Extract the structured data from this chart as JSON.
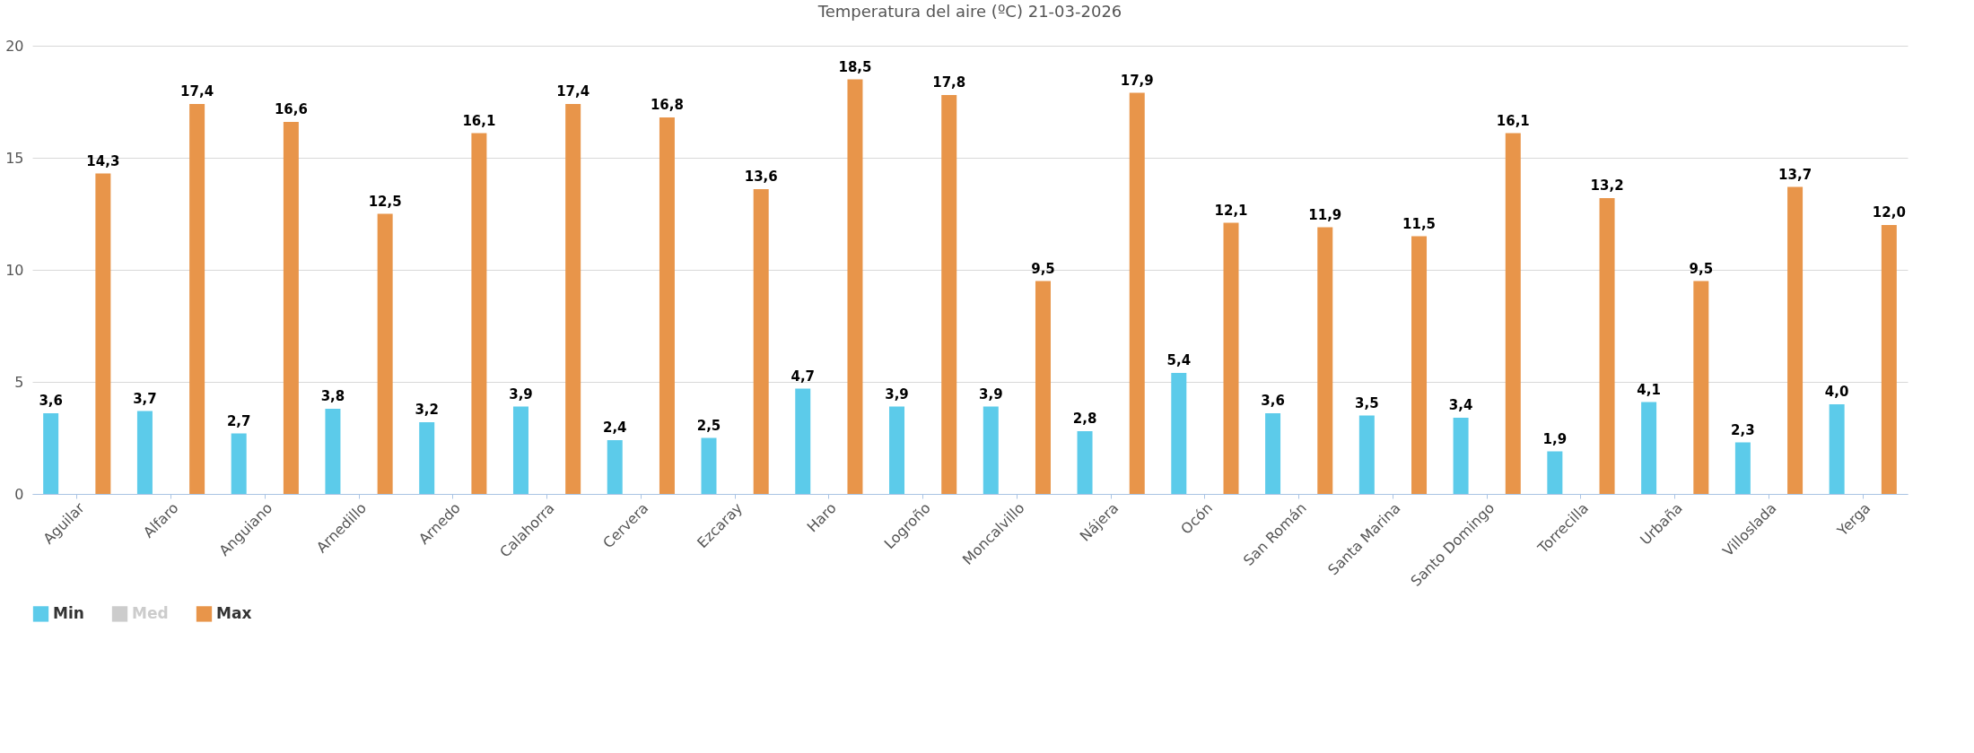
{
  "chart_data": {
    "type": "bar",
    "title": "Temperatura del aire (ºC) 21-03-2026",
    "categories": [
      "Aguilar",
      "Alfaro",
      "Anguiano",
      "Arnedillo",
      "Arnedo",
      "Calahorra",
      "Cervera",
      "Ezcaray",
      "Haro",
      "Logroño",
      "Moncalvillo",
      "Nájera",
      "Ocón",
      "San Román",
      "Santa Marina",
      "Santo Domingo",
      "Torrecilla",
      "Urbaña",
      "Villoslada",
      "Yerga"
    ],
    "series": [
      {
        "name": "Min",
        "color": "#5ccbea",
        "values": [
          3.6,
          3.7,
          2.7,
          3.8,
          3.2,
          3.9,
          2.4,
          2.5,
          4.7,
          3.9,
          3.9,
          2.8,
          5.4,
          3.6,
          3.5,
          3.4,
          1.9,
          4.1,
          2.3,
          4.0
        ],
        "value_labels": [
          "3,6",
          "3,7",
          "2,7",
          "3,8",
          "3,2",
          "3,9",
          "2,4",
          "2,5",
          "4,7",
          "3,9",
          "3,9",
          "2,8",
          "5,4",
          "3,6",
          "3,5",
          "3,4",
          "1,9",
          "4,1",
          "2,3",
          "4,0"
        ]
      },
      {
        "name": "Med",
        "color": "#cccccc",
        "values": [
          null,
          null,
          null,
          null,
          null,
          null,
          null,
          null,
          null,
          null,
          null,
          null,
          null,
          null,
          null,
          null,
          null,
          null,
          null,
          null
        ]
      },
      {
        "name": "Max",
        "color": "#e8954a",
        "values": [
          14.3,
          17.4,
          16.6,
          12.5,
          16.1,
          17.4,
          16.8,
          13.6,
          18.5,
          17.8,
          9.5,
          17.9,
          12.1,
          11.9,
          11.5,
          16.1,
          13.2,
          9.5,
          13.7,
          12.0
        ],
        "value_labels": [
          "14,3",
          "17,4",
          "16,6",
          "12,5",
          "16,1",
          "17,4",
          "16,8",
          "13,6",
          "18,5",
          "17,8",
          "9,5",
          "17,9",
          "12,1",
          "11,9",
          "11,5",
          "16,1",
          "13,2",
          "9,5",
          "13,7",
          "12,0"
        ]
      }
    ],
    "ylim": [
      0,
      20
    ],
    "yticks": [
      0,
      5,
      10,
      15,
      20
    ],
    "grid": "y",
    "legend": "bottom"
  }
}
